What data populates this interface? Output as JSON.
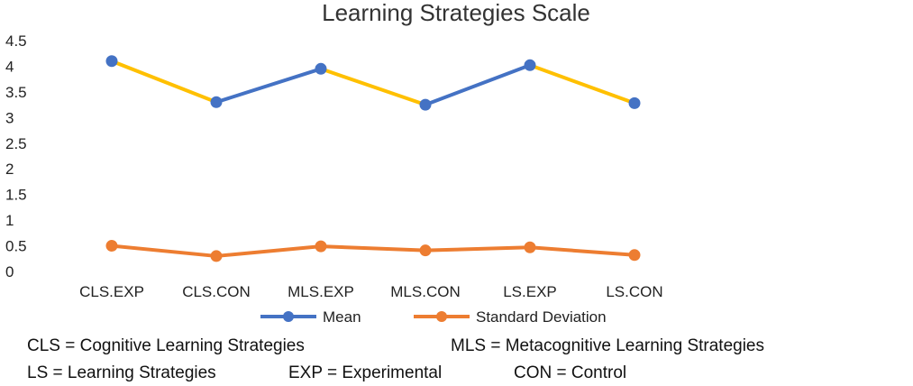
{
  "chart_data": {
    "type": "line",
    "title": "Learning Strategies Scale",
    "categories": [
      "CLS.EXP",
      "CLS.CON",
      "MLS.EXP",
      "MLS.CON",
      "LS.EXP",
      "LS.CON"
    ],
    "series": [
      {
        "name": "Mean",
        "values": [
          4.1,
          3.3,
          3.95,
          3.25,
          4.02,
          3.28
        ],
        "marker_color": "#4472C4",
        "line_colors": [
          "#FFC000",
          "#4472C4",
          "#FFC000",
          "#4472C4",
          "#FFC000"
        ]
      },
      {
        "name": "Standard Deviation",
        "values": [
          0.5,
          0.3,
          0.49,
          0.41,
          0.47,
          0.32
        ],
        "marker_color": "#ED7D31",
        "line_colors": [
          "#ED7D31",
          "#ED7D31",
          "#ED7D31",
          "#ED7D31",
          "#ED7D31"
        ]
      }
    ],
    "yticks": [
      "0",
      "0.5",
      "1",
      "1.5",
      "2",
      "2.5",
      "3",
      "3.5",
      "4",
      "4.5"
    ],
    "ylim": [
      0,
      4.5
    ],
    "grid": false,
    "legend_position": "bottom"
  },
  "footnotes": [
    [
      "CLS = Cognitive Learning Strategies",
      "MLS = Metacognitive Learning Strategies"
    ],
    [
      "LS = Learning Strategies",
      "EXP = Experimental",
      "CON = Control"
    ]
  ]
}
